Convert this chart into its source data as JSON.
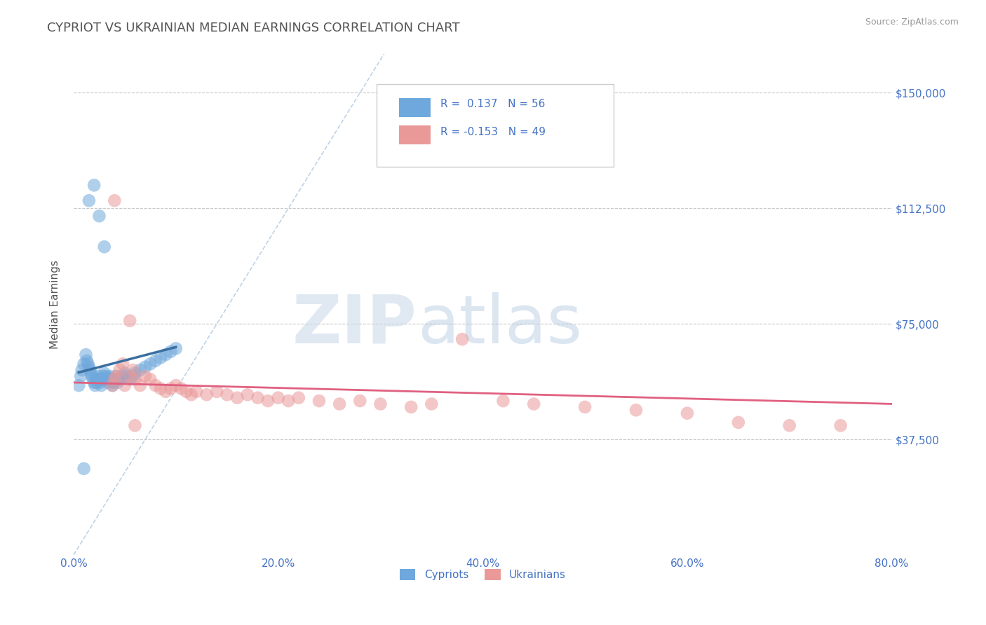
{
  "title": "CYPRIOT VS UKRAINIAN MEDIAN EARNINGS CORRELATION CHART",
  "source": "Source: ZipAtlas.com",
  "ylabel": "Median Earnings",
  "xmin": 0.0,
  "xmax": 0.8,
  "ymin": 0,
  "ymax": 162500,
  "yticks": [
    0,
    37500,
    75000,
    112500,
    150000
  ],
  "ytick_labels": [
    "",
    "$37,500",
    "$75,000",
    "$112,500",
    "$150,000"
  ],
  "xticks": [
    0.0,
    0.2,
    0.4,
    0.6,
    0.8
  ],
  "xtick_labels": [
    "0.0%",
    "20.0%",
    "40.0%",
    "60.0%",
    "80.0%"
  ],
  "cypriot_color": "#6fa8dc",
  "ukrainian_color": "#ea9999",
  "trend_cypriot_color": "#3a6fa0",
  "trend_ukrainian_color": "#e06080",
  "cypriot_R": 0.137,
  "cypriot_N": 56,
  "ukrainian_R": -0.153,
  "ukrainian_N": 49,
  "background_color": "#ffffff",
  "grid_color": "#c8c8c8",
  "title_color": "#555555",
  "label_color": "#4472c4",
  "watermark": "ZIPatlas",
  "ref_line_color": "#b0c8e0",
  "cypriot_x": [
    0.005,
    0.007,
    0.008,
    0.01,
    0.012,
    0.013,
    0.014,
    0.015,
    0.016,
    0.017,
    0.018,
    0.019,
    0.02,
    0.021,
    0.022,
    0.023,
    0.024,
    0.025,
    0.026,
    0.027,
    0.028,
    0.029,
    0.03,
    0.031,
    0.032,
    0.033,
    0.034,
    0.035,
    0.036,
    0.037,
    0.038,
    0.039,
    0.04,
    0.041,
    0.042,
    0.043,
    0.045,
    0.048,
    0.05,
    0.052,
    0.055,
    0.058,
    0.06,
    0.065,
    0.07,
    0.075,
    0.08,
    0.085,
    0.09,
    0.095,
    0.1,
    0.015,
    0.02,
    0.025,
    0.03,
    0.01
  ],
  "cypriot_y": [
    55000,
    58000,
    60000,
    62000,
    65000,
    63000,
    62000,
    61000,
    60000,
    59000,
    58000,
    57000,
    56000,
    55000,
    56000,
    57000,
    58000,
    57000,
    56000,
    55000,
    57000,
    58000,
    59000,
    58000,
    57000,
    56000,
    57000,
    58000,
    57000,
    56000,
    55000,
    56000,
    57000,
    58000,
    57000,
    56000,
    57000,
    58000,
    59000,
    58000,
    57000,
    58000,
    59000,
    60000,
    61000,
    62000,
    63000,
    64000,
    65000,
    66000,
    67000,
    115000,
    120000,
    110000,
    100000,
    28000
  ],
  "ukrainian_x": [
    0.038,
    0.04,
    0.042,
    0.045,
    0.048,
    0.05,
    0.055,
    0.058,
    0.06,
    0.065,
    0.07,
    0.075,
    0.08,
    0.085,
    0.09,
    0.095,
    0.1,
    0.105,
    0.11,
    0.115,
    0.12,
    0.13,
    0.14,
    0.15,
    0.16,
    0.17,
    0.18,
    0.19,
    0.2,
    0.21,
    0.22,
    0.24,
    0.26,
    0.28,
    0.3,
    0.33,
    0.35,
    0.38,
    0.42,
    0.45,
    0.5,
    0.55,
    0.6,
    0.65,
    0.7,
    0.75,
    0.04,
    0.055,
    0.06
  ],
  "ukrainian_y": [
    55000,
    57000,
    58000,
    60000,
    62000,
    55000,
    58000,
    60000,
    57000,
    55000,
    58000,
    57000,
    55000,
    54000,
    53000,
    54000,
    55000,
    54000,
    53000,
    52000,
    53000,
    52000,
    53000,
    52000,
    51000,
    52000,
    51000,
    50000,
    51000,
    50000,
    51000,
    50000,
    49000,
    50000,
    49000,
    48000,
    49000,
    70000,
    50000,
    49000,
    48000,
    47000,
    46000,
    43000,
    42000,
    42000,
    115000,
    76000,
    42000
  ]
}
